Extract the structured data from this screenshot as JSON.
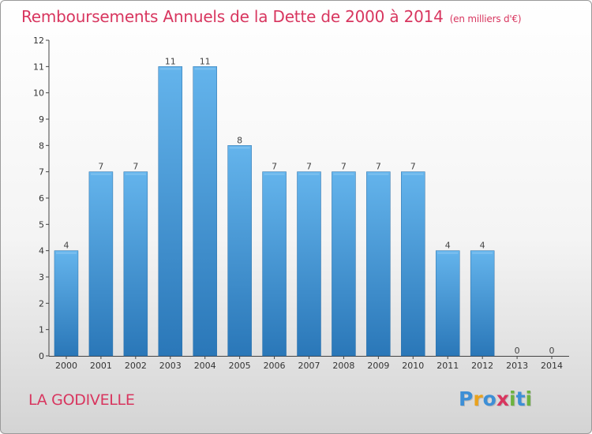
{
  "title": "Remboursements Annuels de la Dette de 2000 à 2014",
  "unit": "(en milliers d'€)",
  "commune": "LA GODIVELLE",
  "logo": {
    "letters": [
      "P",
      "r",
      "o",
      "x",
      "i",
      "t",
      "i"
    ],
    "colors": [
      "#3d8fd6",
      "#e9a21d",
      "#3d8fd6",
      "#d8365f",
      "#6cb33f",
      "#3d8fd6",
      "#6cb33f"
    ]
  },
  "colors": {
    "title": "#d8365f",
    "bar_top": "#64b4ec",
    "bar_bottom": "#2a77b8"
  },
  "chart_data": {
    "type": "bar",
    "categories": [
      "2000",
      "2001",
      "2002",
      "2003",
      "2004",
      "2005",
      "2006",
      "2007",
      "2008",
      "2009",
      "2010",
      "2011",
      "2012",
      "2013",
      "2014"
    ],
    "values": [
      4,
      7,
      7,
      11,
      11,
      8,
      7,
      7,
      7,
      7,
      7,
      4,
      4,
      0,
      0
    ],
    "ylim": [
      0,
      12
    ],
    "yticks": [
      0,
      1,
      2,
      3,
      4,
      5,
      6,
      7,
      8,
      9,
      10,
      11,
      12
    ],
    "grid": false,
    "data_labels": true
  }
}
